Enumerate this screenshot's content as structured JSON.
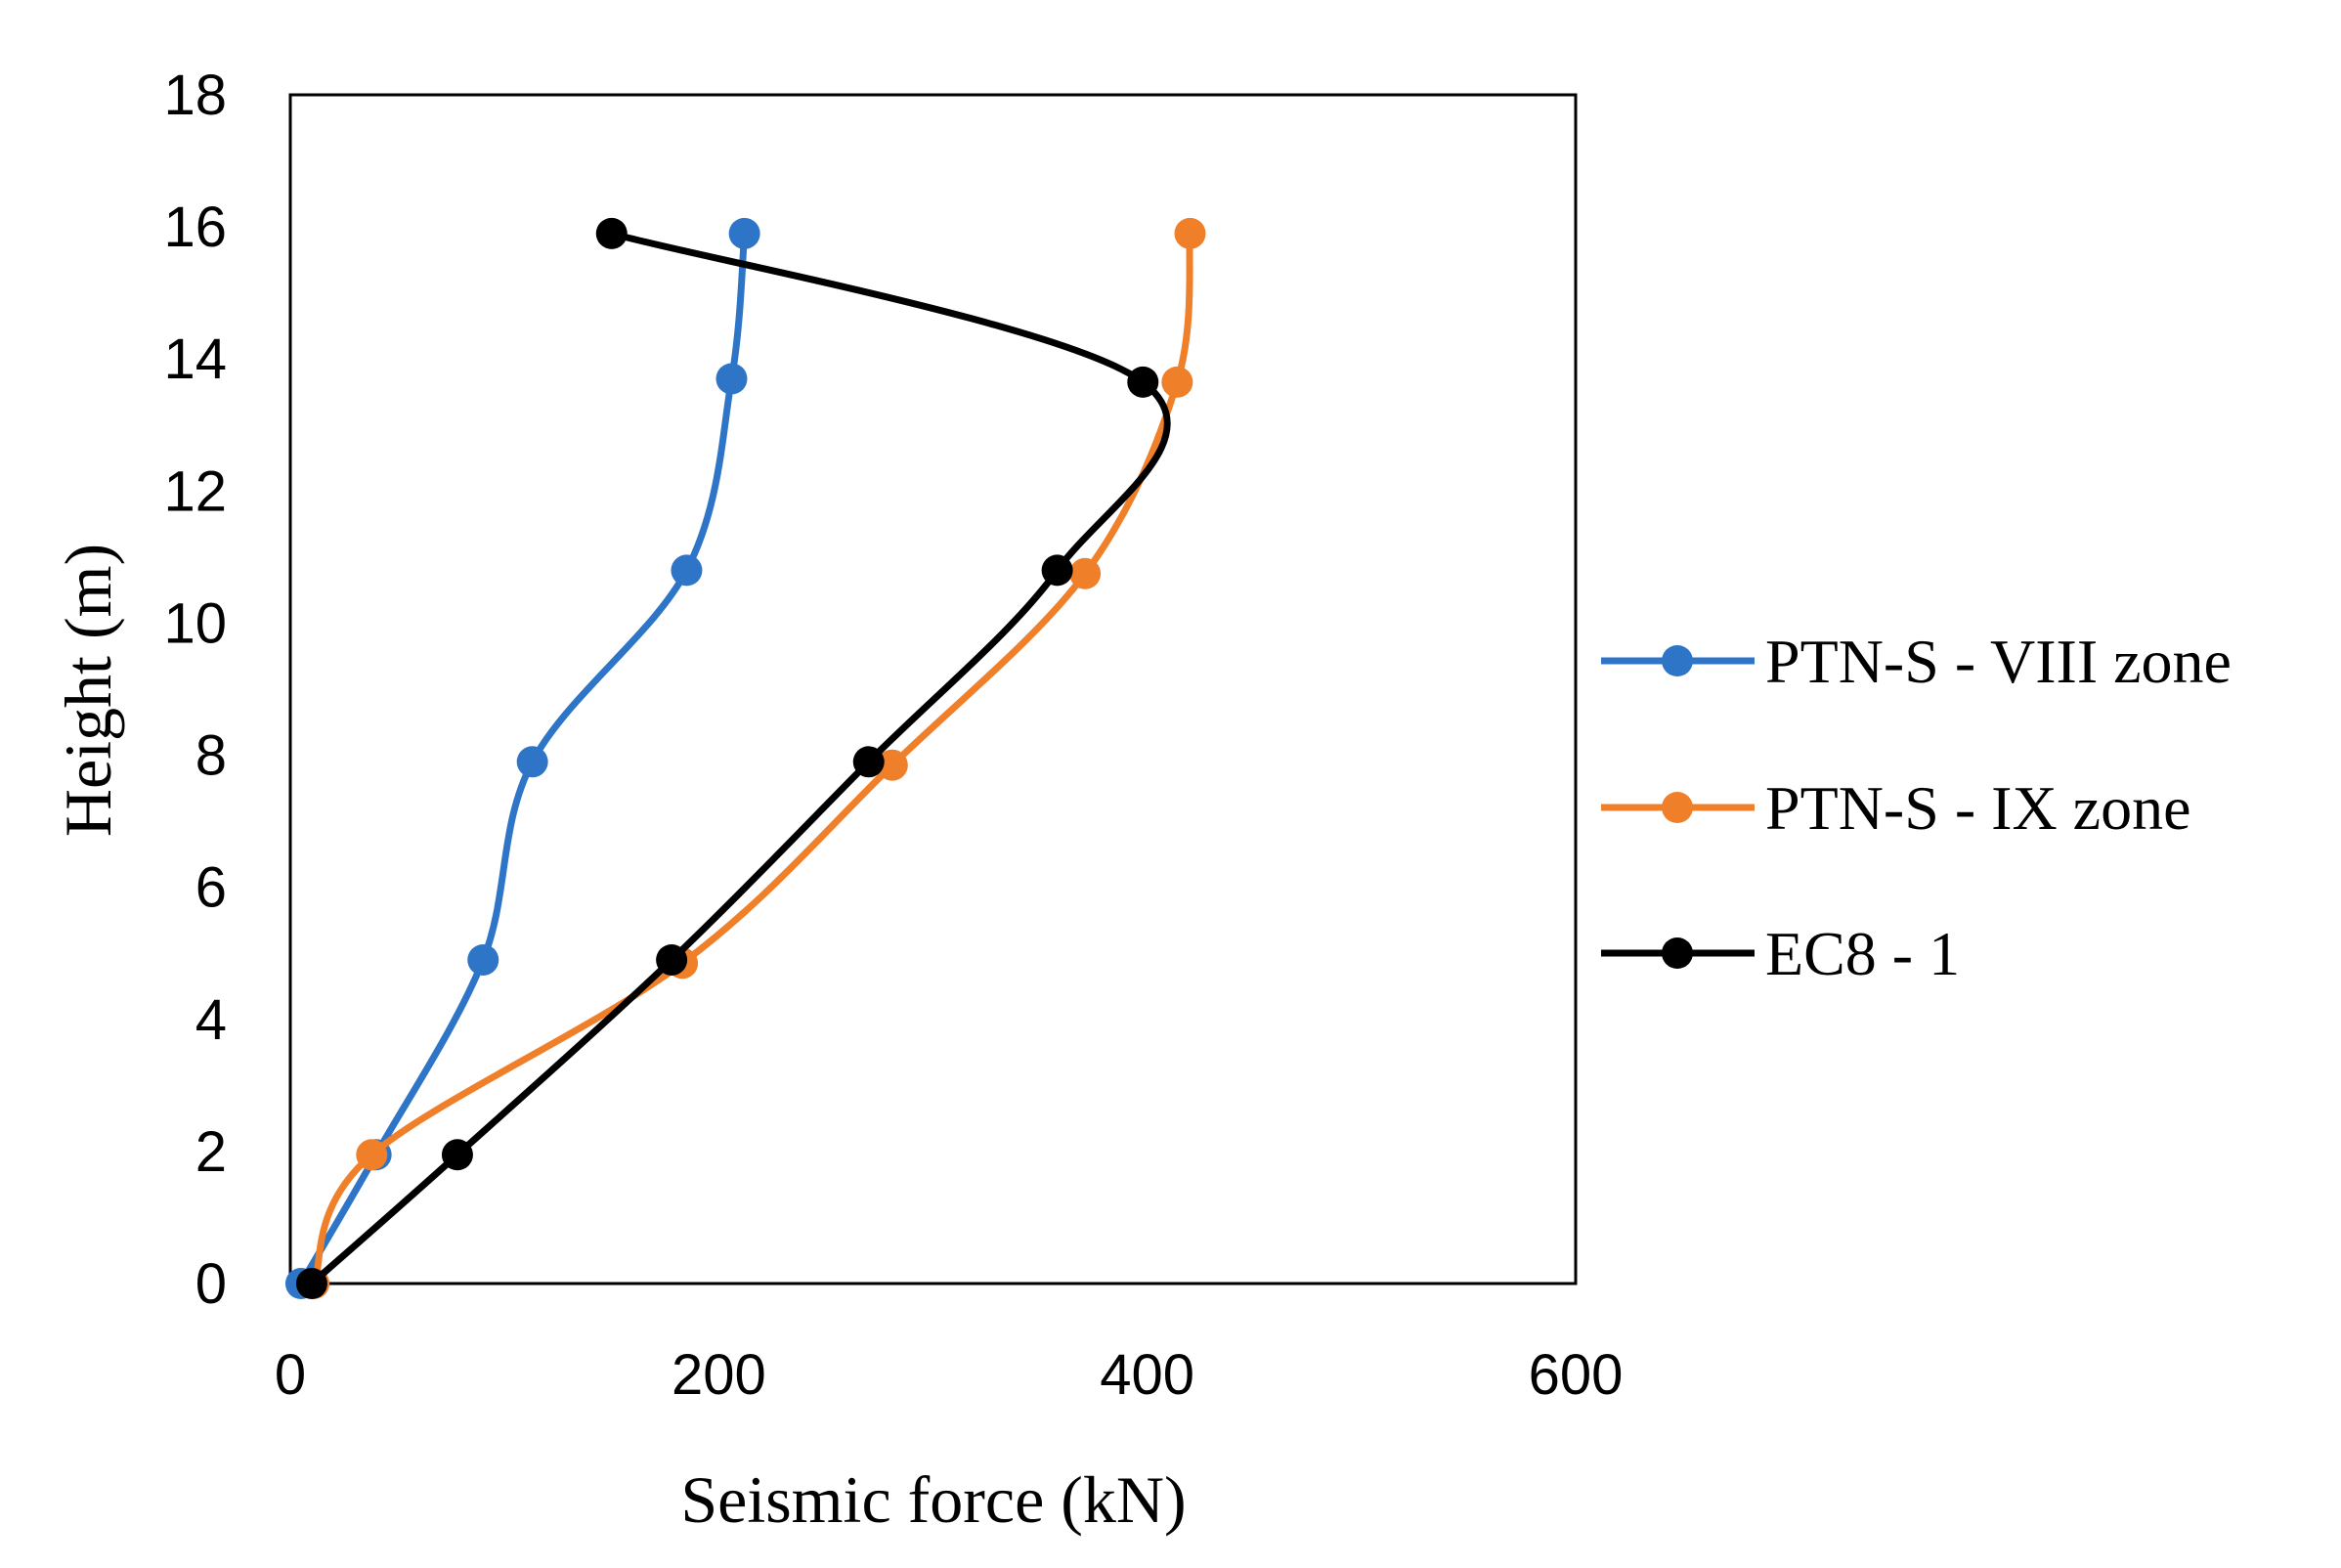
{
  "chart_data": {
    "type": "line",
    "title": "",
    "xlabel": "Seismic force (kN)",
    "ylabel": "Height (m)",
    "xlim": [
      0,
      600
    ],
    "ylim": [
      0,
      18
    ],
    "xticks": [
      "0",
      "200",
      "400",
      "600"
    ],
    "yticks": [
      "0",
      "2",
      "4",
      "6",
      "8",
      "10",
      "12",
      "14",
      "16",
      "18"
    ],
    "grid": false,
    "legend_position": "right",
    "series": [
      {
        "name": "PTN-S - VIII zone",
        "color": "#2E75C8",
        "points": [
          [
            5,
            0
          ],
          [
            40,
            1.95
          ],
          [
            90,
            4.9
          ],
          [
            113,
            7.9
          ],
          [
            185,
            10.8
          ],
          [
            206,
            13.7
          ],
          [
            212,
            15.9
          ]
        ]
      },
      {
        "name": "PTN-S - IX zone",
        "color": "#F07F2A",
        "points": [
          [
            11,
            0
          ],
          [
            38,
            1.95
          ],
          [
            183,
            4.85
          ],
          [
            281,
            7.85
          ],
          [
            371,
            10.75
          ],
          [
            414,
            13.65
          ],
          [
            420,
            15.9
          ]
        ]
      },
      {
        "name": "EC8 - 1",
        "color": "#000000",
        "points": [
          [
            10,
            0
          ],
          [
            78,
            1.95
          ],
          [
            178,
            4.9
          ],
          [
            270,
            7.9
          ],
          [
            358,
            10.8
          ],
          [
            398,
            13.65
          ],
          [
            150,
            15.9
          ]
        ]
      }
    ]
  }
}
